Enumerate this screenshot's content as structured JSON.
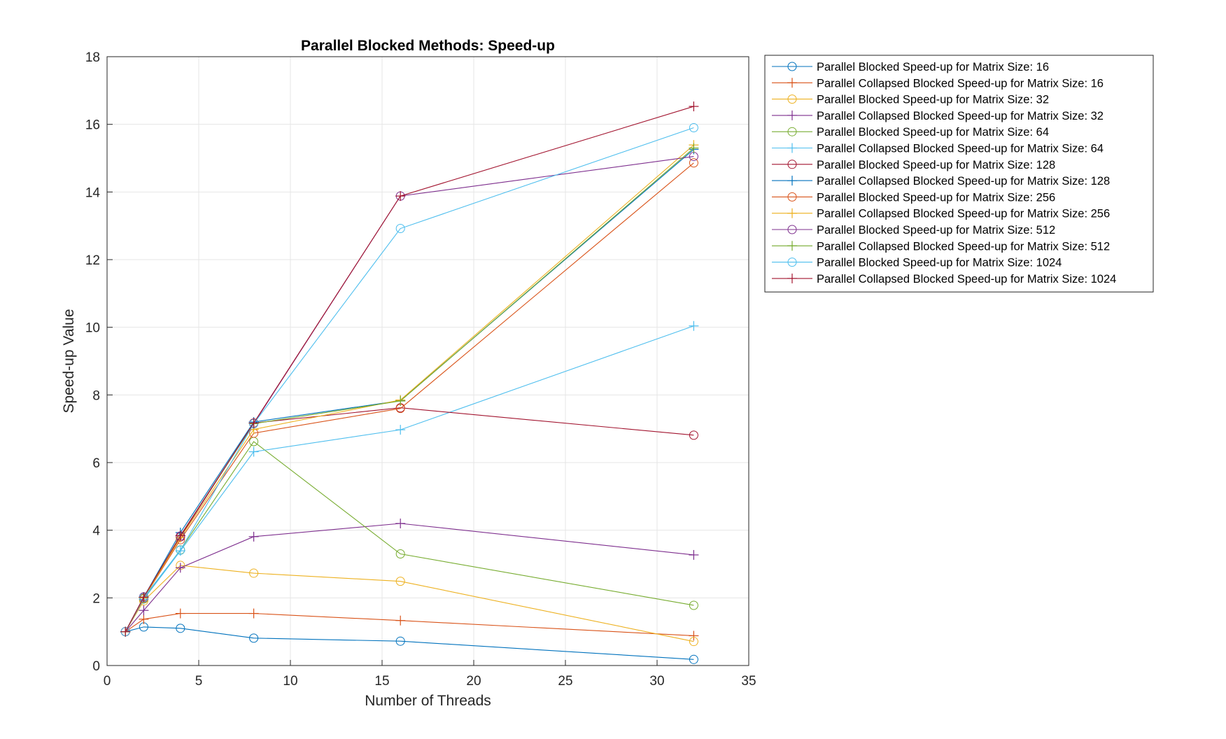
{
  "chart_data": {
    "type": "line",
    "title": "Parallel Blocked Methods: Speed-up",
    "xlabel": "Number of Threads",
    "ylabel": "Speed-up Value",
    "xlim": [
      0,
      35
    ],
    "ylim": [
      0,
      18
    ],
    "xticks": [
      0,
      5,
      10,
      15,
      20,
      25,
      30,
      35
    ],
    "yticks": [
      0,
      2,
      4,
      6,
      8,
      10,
      12,
      14,
      16,
      18
    ],
    "grid": true,
    "legend_position": "outside-top-right",
    "x": [
      1,
      2,
      4,
      8,
      16,
      32
    ],
    "series": [
      {
        "name": "Parallel Blocked Speed-up for Matrix Size: 16",
        "color": "#0072BD",
        "marker": "circle",
        "values": [
          1.0,
          1.14,
          1.1,
          0.81,
          0.72,
          0.18
        ]
      },
      {
        "name": "Parallel Collapsed Blocked Speed-up for Matrix Size: 16",
        "color": "#D95319",
        "marker": "plus",
        "values": [
          1.0,
          1.37,
          1.54,
          1.54,
          1.33,
          0.88
        ]
      },
      {
        "name": "Parallel Blocked Speed-up for Matrix Size: 32",
        "color": "#EDB120",
        "marker": "circle",
        "values": [
          1.0,
          1.91,
          2.96,
          2.73,
          2.49,
          0.71
        ]
      },
      {
        "name": "Parallel Collapsed Blocked Speed-up for Matrix Size: 32",
        "color": "#7E2F8E",
        "marker": "plus",
        "values": [
          1.0,
          1.63,
          2.89,
          3.81,
          4.2,
          3.27
        ]
      },
      {
        "name": "Parallel Blocked Speed-up for Matrix Size: 64",
        "color": "#77AC30",
        "marker": "circle",
        "values": [
          1.0,
          1.97,
          3.42,
          6.62,
          3.3,
          1.78
        ]
      },
      {
        "name": "Parallel Collapsed Blocked Speed-up for Matrix Size: 64",
        "color": "#4DBEEE",
        "marker": "plus",
        "values": [
          1.0,
          1.96,
          3.39,
          6.32,
          6.97,
          10.04
        ]
      },
      {
        "name": "Parallel Blocked Speed-up for Matrix Size: 128",
        "color": "#A2142F",
        "marker": "circle",
        "values": [
          1.0,
          2.02,
          3.8,
          7.17,
          7.62,
          6.81
        ]
      },
      {
        "name": "Parallel Collapsed Blocked Speed-up for Matrix Size: 128",
        "color": "#0072BD",
        "marker": "plus",
        "values": [
          1.0,
          2.02,
          3.93,
          7.2,
          7.83,
          15.26
        ]
      },
      {
        "name": "Parallel Blocked Speed-up for Matrix Size: 256",
        "color": "#D95319",
        "marker": "circle",
        "values": [
          1.0,
          1.99,
          3.72,
          6.87,
          7.6,
          14.86
        ]
      },
      {
        "name": "Parallel Collapsed Blocked Speed-up for Matrix Size: 256",
        "color": "#EDB120",
        "marker": "plus",
        "values": [
          1.0,
          2.0,
          3.78,
          6.98,
          7.85,
          15.39
        ]
      },
      {
        "name": "Parallel Blocked Speed-up for Matrix Size: 512",
        "color": "#7E2F8E",
        "marker": "circle",
        "values": [
          1.0,
          2.03,
          3.83,
          7.15,
          13.88,
          15.05
        ]
      },
      {
        "name": "Parallel Collapsed Blocked Speed-up for Matrix Size: 512",
        "color": "#77AC30",
        "marker": "plus",
        "values": [
          1.0,
          2.02,
          3.84,
          7.15,
          7.82,
          15.3
        ]
      },
      {
        "name": "Parallel Blocked Speed-up for Matrix Size: 1024",
        "color": "#4DBEEE",
        "marker": "circle",
        "values": [
          1.0,
          2.01,
          3.41,
          7.15,
          12.92,
          15.9
        ]
      },
      {
        "name": "Parallel Collapsed Blocked Speed-up for Matrix Size: 1024",
        "color": "#A2142F",
        "marker": "plus",
        "values": [
          1.0,
          2.02,
          3.84,
          7.17,
          13.88,
          16.53
        ]
      }
    ]
  }
}
